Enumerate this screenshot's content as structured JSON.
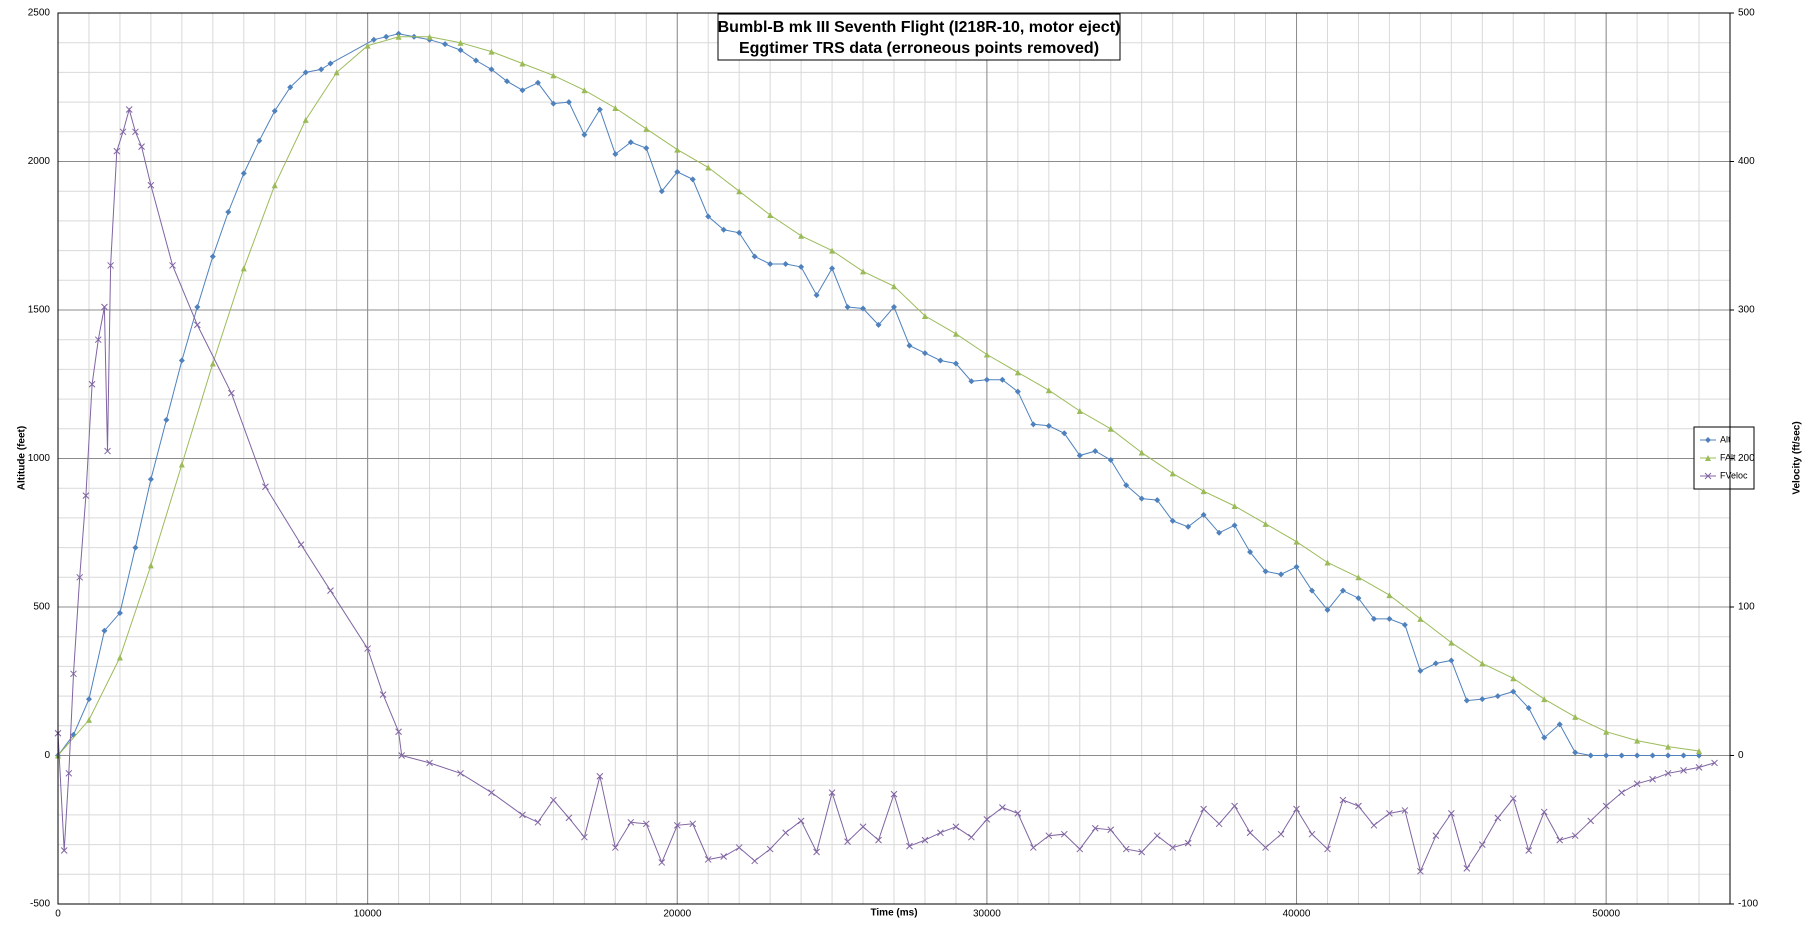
{
  "chart_data": {
    "type": "line",
    "title": "Bumbl-B mk III Seventh Flight (I218R-10, motor eject)",
    "subtitle": "Eggtimer TRS data (erroneous points removed)",
    "x_label": "Time (ms)",
    "y_label": "Altitude (feet)",
    "y2_label": "Velocity (ft/sec)",
    "xlim": [
      0,
      54000
    ],
    "xticks": [
      0,
      10000,
      20000,
      30000,
      40000,
      50000
    ],
    "ylim": [
      -500,
      2500
    ],
    "yticks": [
      -500,
      0,
      500,
      1000,
      1500,
      2000,
      2500
    ],
    "y2lim": [
      -100,
      500
    ],
    "y2ticks": [
      -100,
      0,
      100,
      200,
      300,
      400,
      500
    ],
    "grid": true,
    "minor_grid": true,
    "legend": "right",
    "series": [
      {
        "name": "Alt",
        "color": "#4f81bd",
        "marker": "diamond",
        "x": [
          0,
          500,
          1000,
          1500,
          2000,
          2500,
          3000,
          3500,
          4000,
          4500,
          5000,
          5500,
          6000,
          6500,
          7000,
          7500,
          8000,
          8500,
          8800,
          10200,
          10600,
          11000,
          11500,
          12000,
          12500,
          13000,
          13500,
          14000,
          14500,
          15000,
          15500,
          16000,
          16500,
          17000,
          17500,
          18000,
          18500,
          19000,
          19500,
          20000,
          20500,
          21000,
          21500,
          22000,
          22500,
          23000,
          23500,
          24000,
          24500,
          25000,
          25500,
          26000,
          26500,
          27000,
          27500,
          28000,
          28500,
          29000,
          29500,
          30000,
          30500,
          31000,
          31500,
          32000,
          32500,
          33000,
          33500,
          34000,
          34500,
          35000,
          35500,
          36000,
          36500,
          37000,
          37500,
          38000,
          38500,
          39000,
          39500,
          40000,
          40500,
          41000,
          41500,
          42000,
          42500,
          43000,
          43500,
          44000,
          44500,
          45000,
          45500,
          46000,
          46500,
          47000,
          47500,
          48000,
          48500,
          49000,
          49500,
          50000,
          50500,
          51000,
          51500,
          52000,
          52500,
          53000
        ],
        "values": [
          0,
          70,
          190,
          420,
          480,
          700,
          930,
          1130,
          1330,
          1510,
          1680,
          1830,
          1960,
          2070,
          2170,
          2250,
          2300,
          2310,
          2330,
          2410,
          2420,
          2430,
          2420,
          2410,
          2395,
          2375,
          2340,
          2310,
          2270,
          2240,
          2265,
          2195,
          2200,
          2090,
          2175,
          2025,
          2065,
          2045,
          1900,
          1965,
          1940,
          1815,
          1770,
          1760,
          1680,
          1655,
          1655,
          1645,
          1550,
          1640,
          1510,
          1505,
          1450,
          1510,
          1380,
          1355,
          1330,
          1320,
          1260,
          1265,
          1265,
          1225,
          1115,
          1110,
          1085,
          1010,
          1025,
          995,
          910,
          865,
          860,
          790,
          770,
          810,
          750,
          775,
          685,
          620,
          610,
          635,
          555,
          490,
          555,
          530,
          460,
          460,
          440,
          285,
          310,
          320,
          185,
          190,
          200,
          215,
          160,
          60,
          105,
          10,
          0,
          0,
          0,
          0,
          0,
          0,
          0,
          0
        ]
      },
      {
        "name": "FAlt",
        "color": "#9bbb59",
        "marker": "triangle",
        "x": [
          0,
          1000,
          2000,
          3000,
          4000,
          5000,
          6000,
          7000,
          8000,
          9000,
          10000,
          11000,
          12000,
          13000,
          14000,
          15000,
          16000,
          17000,
          18000,
          19000,
          20000,
          21000,
          22000,
          23000,
          24000,
          25000,
          26000,
          27000,
          28000,
          29000,
          30000,
          31000,
          32000,
          33000,
          34000,
          35000,
          36000,
          37000,
          38000,
          39000,
          40000,
          41000,
          42000,
          43000,
          44000,
          45000,
          46000,
          47000,
          48000,
          49000,
          50000,
          51000,
          52000,
          53000
        ],
        "values": [
          0,
          120,
          330,
          640,
          980,
          1320,
          1640,
          1920,
          2140,
          2300,
          2390,
          2420,
          2420,
          2400,
          2370,
          2330,
          2290,
          2240,
          2180,
          2110,
          2040,
          1980,
          1900,
          1820,
          1750,
          1700,
          1630,
          1580,
          1480,
          1420,
          1350,
          1290,
          1230,
          1160,
          1100,
          1020,
          950,
          890,
          840,
          780,
          720,
          650,
          600,
          540,
          460,
          380,
          310,
          260,
          190,
          130,
          80,
          50,
          30,
          15
        ]
      },
      {
        "name": "FVeloc",
        "color": "#8064a2",
        "marker": "x",
        "axis": "y2",
        "x": [
          0,
          200,
          350,
          500,
          700,
          900,
          1100,
          1300,
          1500,
          1600,
          1700,
          1900,
          2100,
          2300,
          2500,
          2700,
          3000,
          3700,
          4500,
          5600,
          6700,
          7850,
          8800,
          10000,
          10500,
          11000,
          11100,
          12000,
          13000,
          14000,
          15000,
          15500,
          16000,
          16500,
          17000,
          17500,
          18000,
          18500,
          19000,
          19500,
          20000,
          20500,
          21000,
          21500,
          22000,
          22500,
          23000,
          23500,
          24000,
          24500,
          25000,
          25500,
          26000,
          26500,
          27000,
          27500,
          28000,
          28500,
          29000,
          29500,
          30000,
          30500,
          31000,
          31500,
          32000,
          32500,
          33000,
          33500,
          34000,
          34500,
          35000,
          35500,
          36000,
          36500,
          37000,
          37500,
          38000,
          38500,
          39000,
          39500,
          40000,
          40500,
          41000,
          41500,
          42000,
          42500,
          43000,
          43500,
          44000,
          44500,
          45000,
          45500,
          46000,
          46500,
          47000,
          47500,
          48000,
          48500,
          49000,
          49500,
          50000,
          50500,
          51000,
          51500,
          52000,
          52500,
          53000,
          53500
        ],
        "values": [
          15,
          -64,
          -12,
          55,
          120,
          175,
          250,
          280,
          302,
          205,
          330,
          407,
          420,
          435,
          420,
          410,
          384,
          330,
          290,
          244,
          181,
          142,
          111,
          72,
          41,
          16,
          0,
          -5,
          -12,
          -25,
          -40,
          -45,
          -30,
          -42,
          -55,
          -14,
          -62,
          -45,
          -46,
          -72,
          -47,
          -46,
          -70,
          -68,
          -62,
          -71,
          -63,
          -52,
          -44,
          -65,
          -25,
          -58,
          -48,
          -57,
          -26,
          -61,
          -57,
          -52,
          -48,
          -55,
          -43,
          -35,
          -39,
          -62,
          -54,
          -53,
          -63,
          -49,
          -50,
          -63,
          -65,
          -54,
          -62,
          -59,
          -36,
          -46,
          -34,
          -52,
          -62,
          -53,
          -36,
          -53,
          -63,
          -30,
          -34,
          -47,
          -39,
          -37,
          -78,
          -54,
          -39,
          -76,
          -60,
          -42,
          -29,
          -64,
          -38,
          -57,
          -54,
          -44,
          -34,
          -25,
          -19,
          -16,
          -12,
          -10,
          -8,
          -5
        ]
      }
    ]
  }
}
